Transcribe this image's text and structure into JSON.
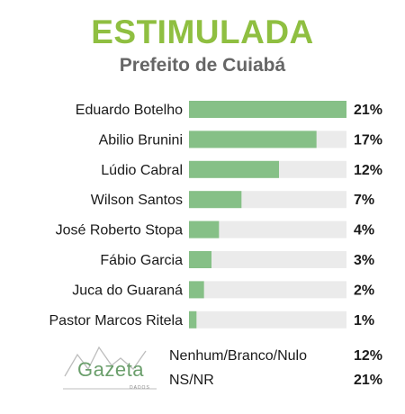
{
  "header": {
    "title": "ESTIMULADA",
    "subtitle": "Prefeito de Cuiabá"
  },
  "colors": {
    "title": "#8fbf41",
    "bar": "#86c087",
    "track": "#ebebeb"
  },
  "chart_data": {
    "type": "bar",
    "orientation": "horizontal",
    "title": "ESTIMULADA",
    "subtitle": "Prefeito de Cuiabá",
    "categories": [
      "Eduardo Botelho",
      "Abilio Brunini",
      "Lúdio Cabral",
      "Wilson Santos",
      "José Roberto Stopa",
      "Fábio Garcia",
      "Juca do Guaraná",
      "Pastor Marcos Ritela"
    ],
    "values": [
      21,
      17,
      12,
      7,
      4,
      3,
      2,
      1
    ],
    "value_labels": [
      "21%",
      "17%",
      "12%",
      "7%",
      "4%",
      "3%",
      "2%",
      "1%"
    ],
    "xlim": [
      0,
      21
    ],
    "grid": false,
    "legend": "none"
  },
  "extras": [
    {
      "label": "Nenhum/Branco/Nulo",
      "value": "12%"
    },
    {
      "label": "NS/NR",
      "value": "21%"
    }
  ],
  "logo": {
    "name": "Gazeta",
    "sub": "DADOS",
    "icon": "line-chart-icon"
  }
}
